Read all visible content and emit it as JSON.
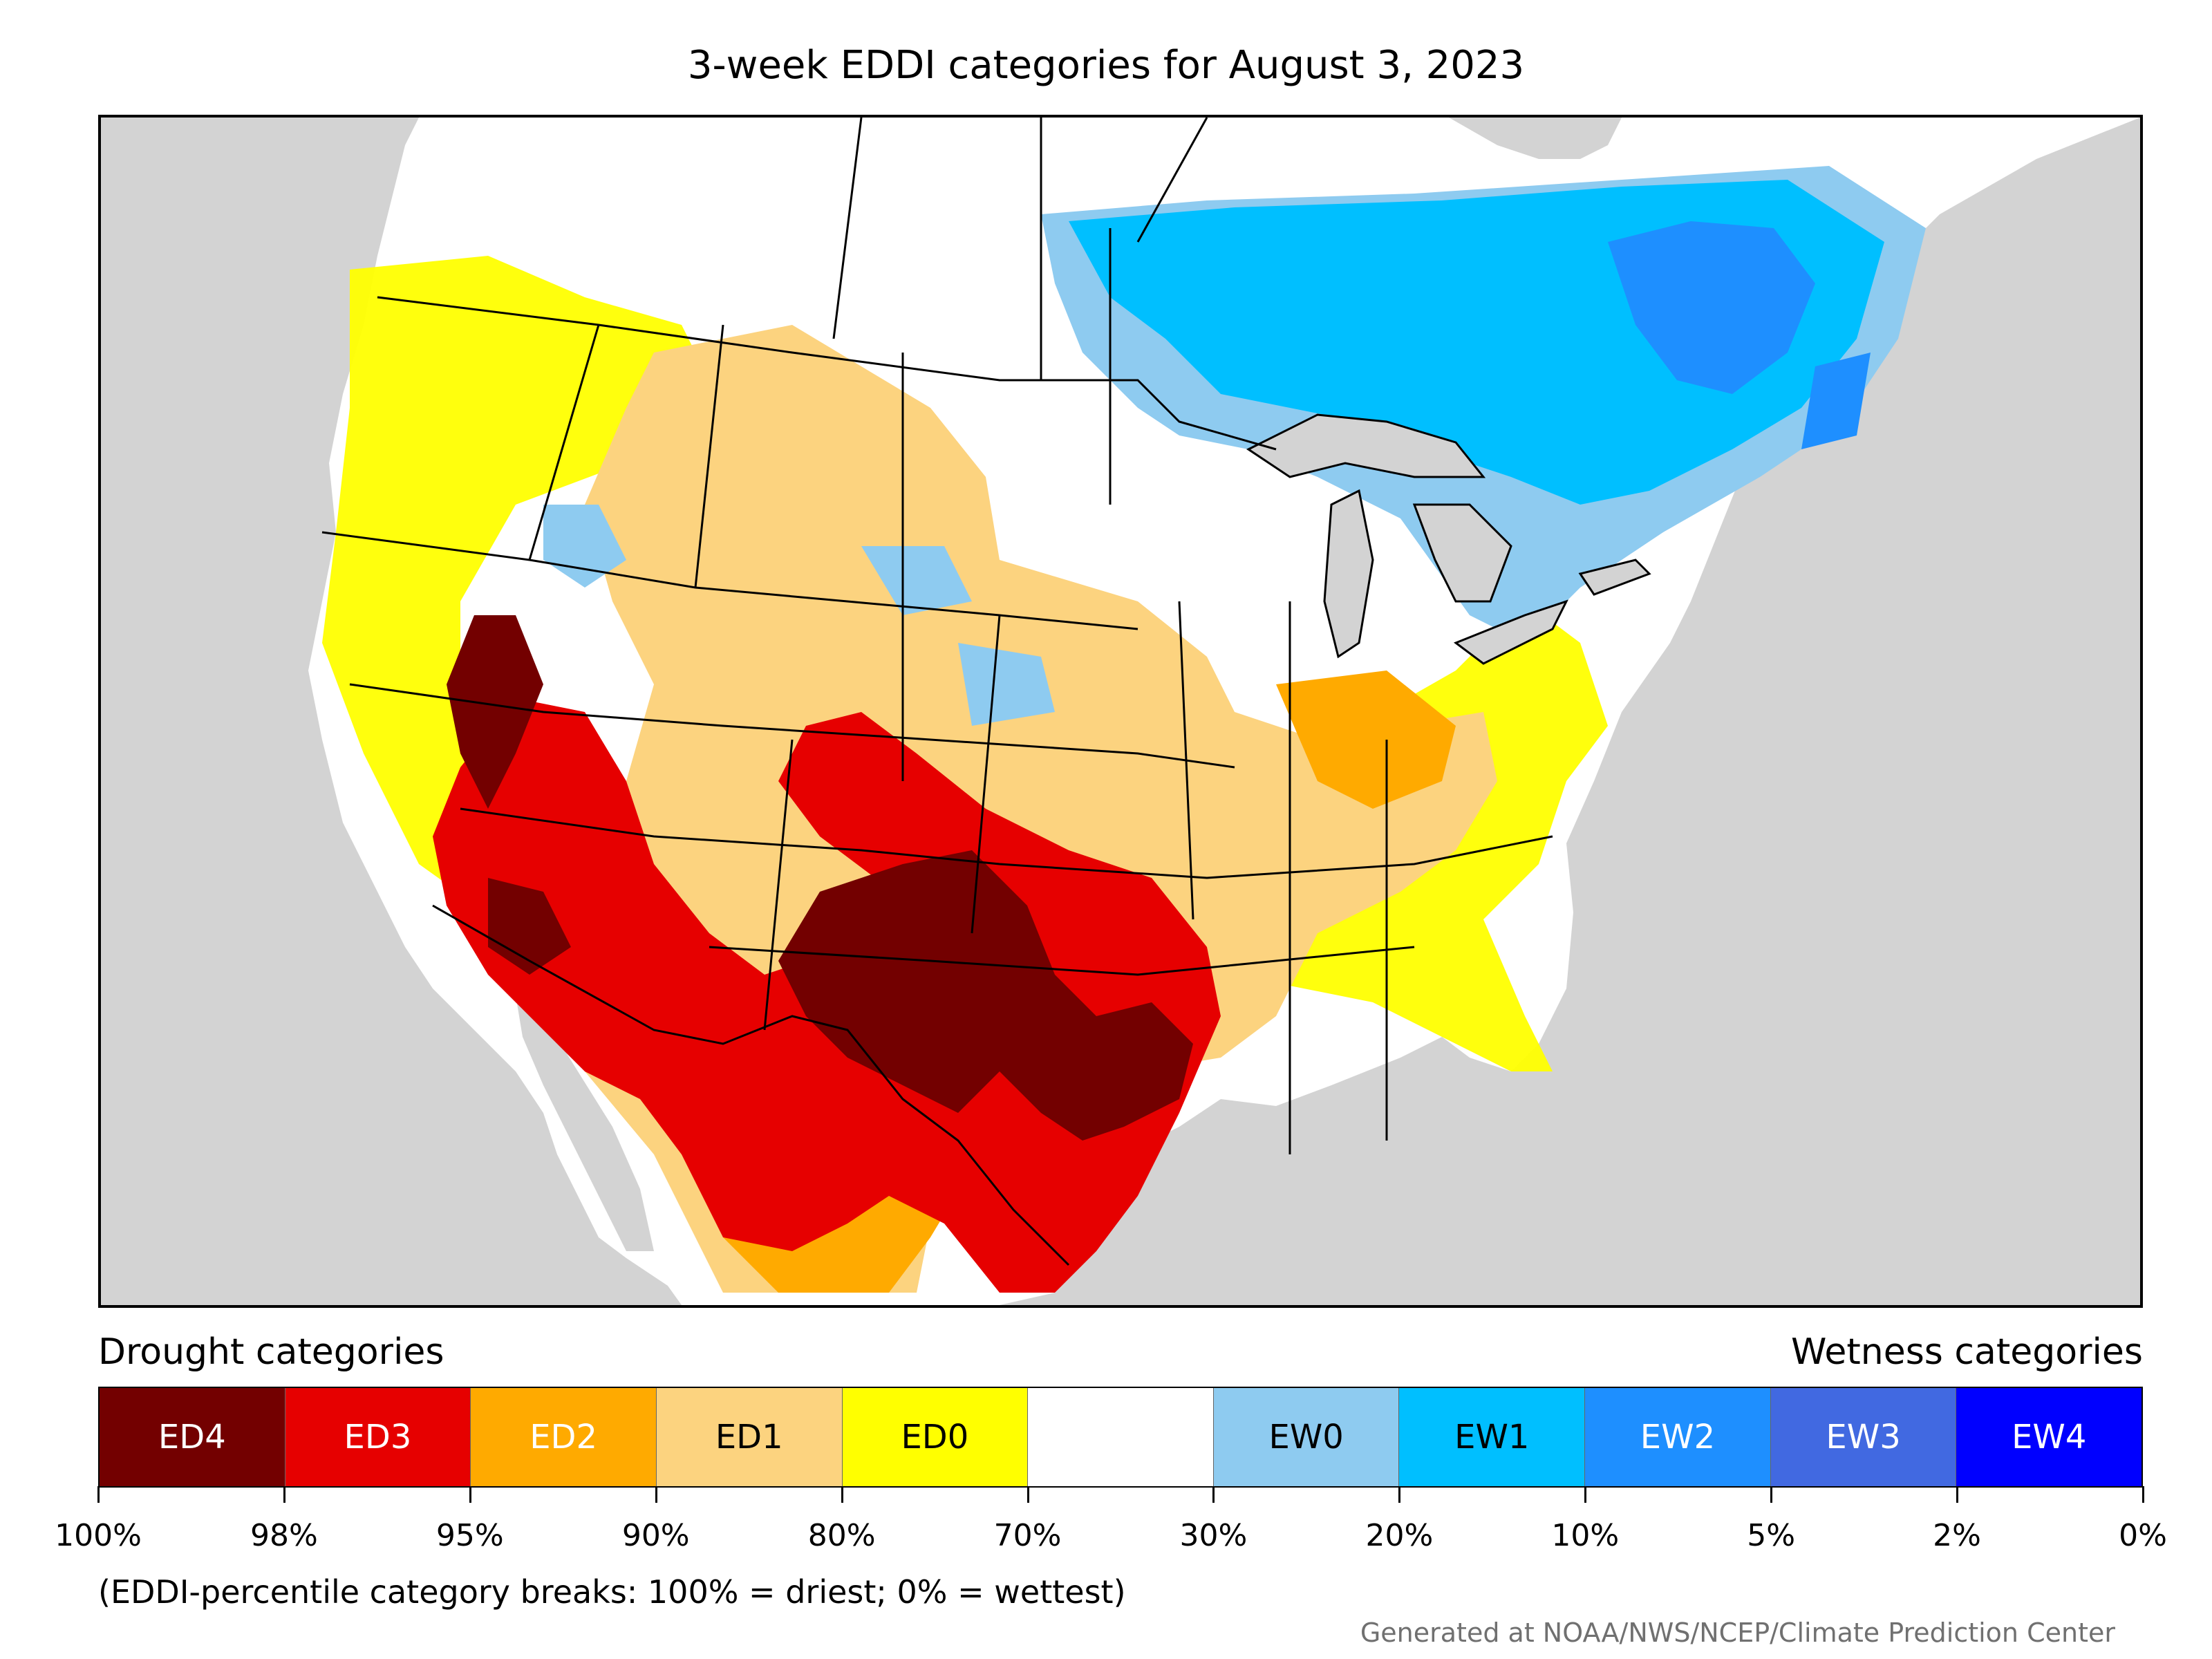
{
  "title": "3-week EDDI categories for August 3, 2023",
  "legend": {
    "drought_heading": "Drought categories",
    "wetness_heading": "Wetness categories",
    "categories": [
      {
        "label": "ED4",
        "color": "#730000",
        "text_color": "#ffffff"
      },
      {
        "label": "ED3",
        "color": "#e60000",
        "text_color": "#ffffff"
      },
      {
        "label": "ED2",
        "color": "#ffaa00",
        "text_color": "#ffffff"
      },
      {
        "label": "ED1",
        "color": "#fcd37f",
        "text_color": "#000000"
      },
      {
        "label": "ED0",
        "color": "#ffff00",
        "text_color": "#000000"
      },
      {
        "label": "",
        "color": "#ffffff",
        "text_color": "#000000"
      },
      {
        "label": "EW0",
        "color": "#8ecbf0",
        "text_color": "#000000"
      },
      {
        "label": "EW1",
        "color": "#00bfff",
        "text_color": "#000000"
      },
      {
        "label": "EW2",
        "color": "#1e8fff",
        "text_color": "#ffffff"
      },
      {
        "label": "EW3",
        "color": "#4169e1",
        "text_color": "#ffffff"
      },
      {
        "label": "EW4",
        "color": "#0000ff",
        "text_color": "#ffffff"
      }
    ],
    "tick_labels": [
      "100%",
      "98%",
      "95%",
      "90%",
      "80%",
      "70%",
      "30%",
      "20%",
      "10%",
      "5%",
      "2%",
      "0%"
    ]
  },
  "note": "(EDDI-percentile category breaks: 100% = driest; 0% = wettest)",
  "credit": "Generated at NOAA/NWS/NCEP/Climate Prediction Center",
  "map_colors": {
    "background": "#d3d3d3",
    "land": "#ffffff",
    "water": "#d3d3d3",
    "boundaries": "#000000"
  }
}
